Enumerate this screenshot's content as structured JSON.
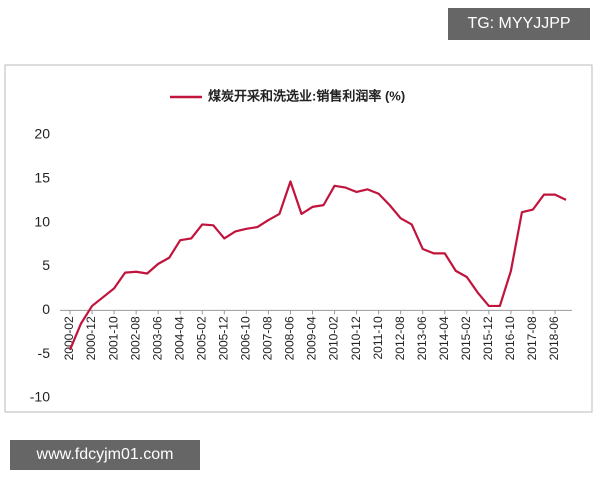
{
  "chart_data": {
    "type": "line",
    "categories": [
      "2000-02",
      null,
      "2000-12",
      null,
      "2001-10",
      null,
      "2002-08",
      null,
      "2003-06",
      null,
      "2004-04",
      null,
      "2005-02",
      null,
      "2005-12",
      null,
      "2006-10",
      null,
      "2007-08",
      null,
      "2008-06",
      null,
      "2009-04",
      null,
      "2010-02",
      null,
      "2010-12",
      null,
      "2011-10",
      null,
      "2012-08",
      null,
      "2013-06",
      null,
      "2014-04",
      null,
      "2015-02",
      null,
      "2015-12",
      null,
      "2016-10",
      null,
      "2017-08",
      null,
      "2018-06",
      null
    ],
    "series": [
      {
        "name": "煤炭开采和洗选业:销售利润率 (%)",
        "color": "#c0143c",
        "values": [
          -4.5,
          -1.5,
          0.5,
          1.5,
          2.5,
          4.3,
          4.4,
          4.2,
          5.3,
          6,
          8,
          8.2,
          9.8,
          9.7,
          8.2,
          9,
          9.3,
          9.5,
          10.3,
          11,
          14.7,
          11,
          11.8,
          12,
          14.2,
          14,
          13.5,
          13.8,
          13.3,
          12,
          10.5,
          9.8,
          7,
          6.5,
          6.5,
          4.5,
          3.8,
          2,
          0.5,
          0.5,
          4.5,
          11.2,
          11.5,
          13.2,
          13.2,
          12.6
        ]
      }
    ],
    "ylim": [
      -10,
      20
    ],
    "yticks": [
      -10,
      -5,
      0,
      5,
      10,
      15,
      20
    ],
    "legend": "top"
  },
  "watermark_top": "TG: MYYJJPP",
  "watermark_bottom": "www.fdcyjm01.com"
}
